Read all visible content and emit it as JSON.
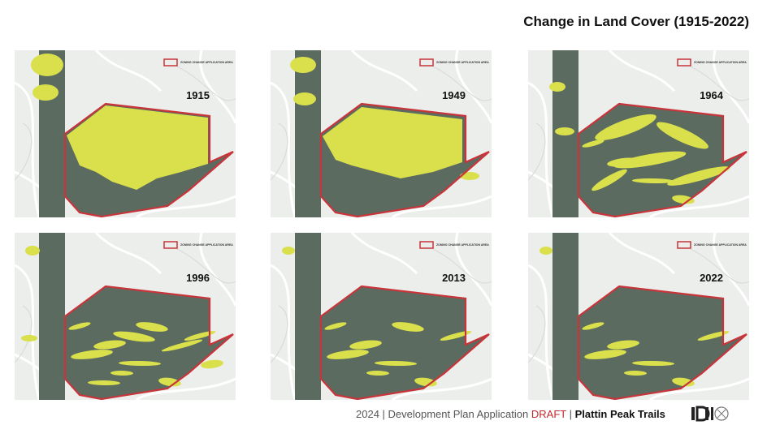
{
  "title": "Change in Land Cover (1915-2022)",
  "legend_label": "ZONING CHANGE APPLICATION AREA",
  "panels": [
    {
      "year": "1915"
    },
    {
      "year": "1949"
    },
    {
      "year": "1964"
    },
    {
      "year": "1996"
    },
    {
      "year": "2013"
    },
    {
      "year": "2022"
    }
  ],
  "footer": {
    "text": "2024 | Development Plan Application",
    "status": "DRAFT",
    "separator": "|",
    "project": "Plattin Peak Trails"
  }
}
